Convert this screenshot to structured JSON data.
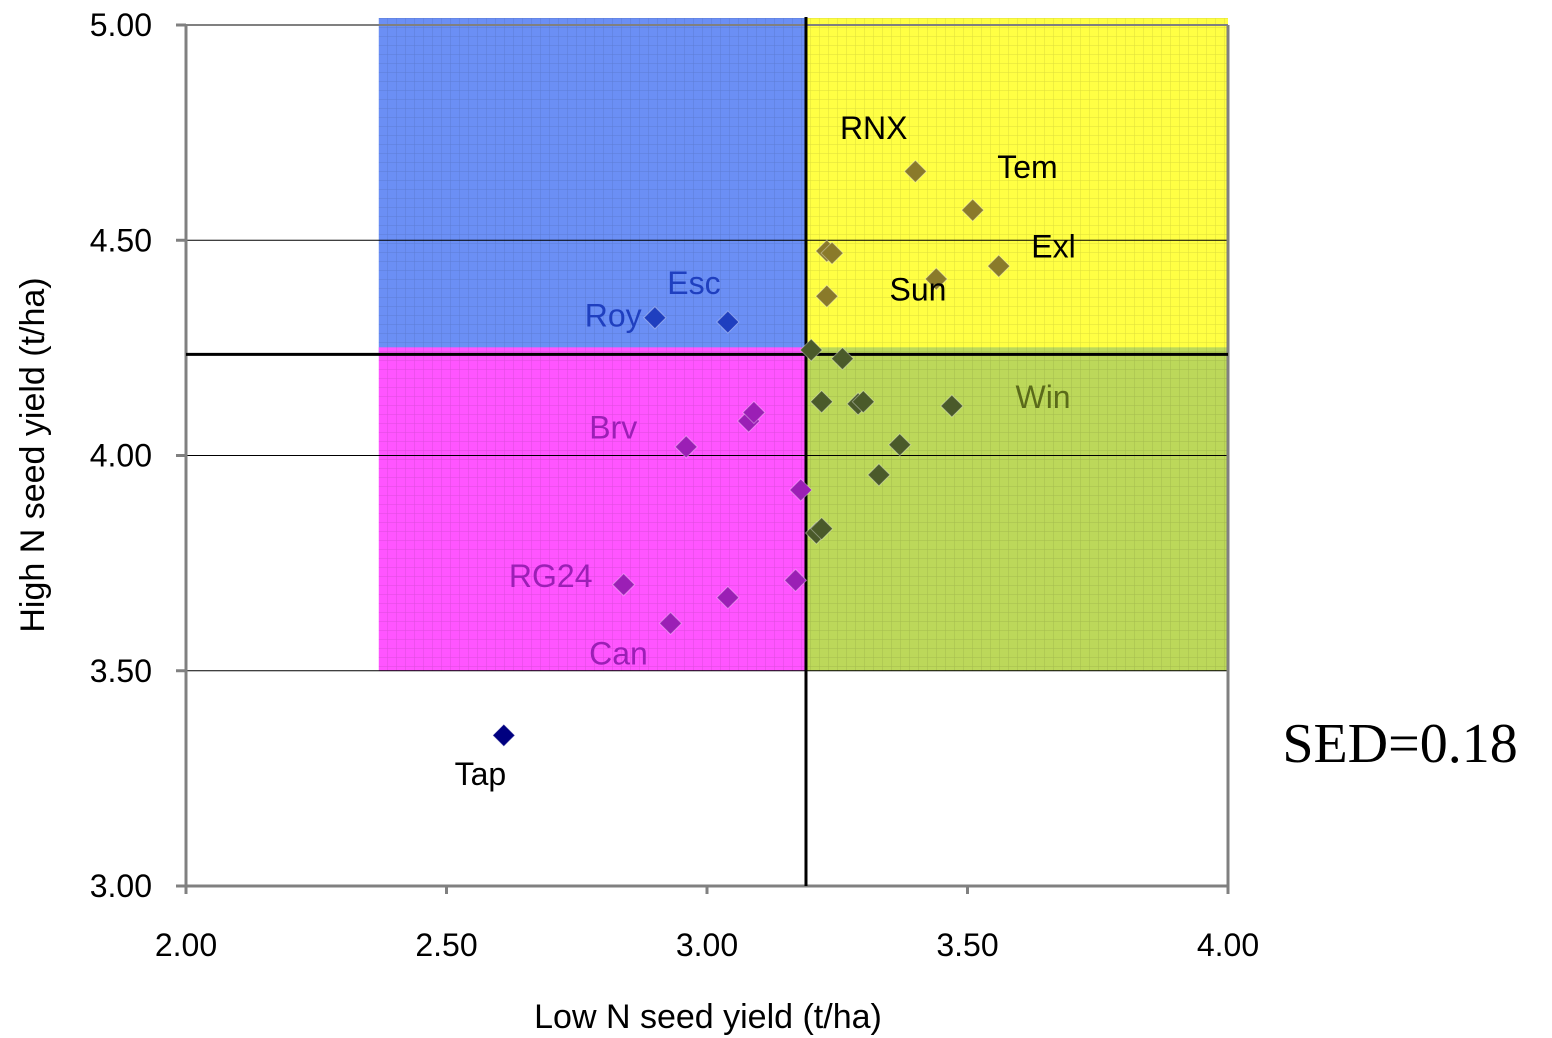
{
  "chart_data": {
    "type": "scatter",
    "xlabel": "Low N seed yield (t/ha)",
    "ylabel": "High N seed yield (t/ha)",
    "xlim": [
      2.0,
      4.0
    ],
    "ylim": [
      3.0,
      5.0
    ],
    "x_ticks": [
      "2.00",
      "2.50",
      "3.00",
      "3.50",
      "4.00"
    ],
    "y_ticks": [
      "3.00",
      "3.50",
      "4.00",
      "4.50",
      "5.00"
    ],
    "gridlines": "horizontal",
    "reference_lines": {
      "x": 3.19,
      "y": 4.235
    },
    "regions": [
      {
        "x": [
          2.37,
          3.19
        ],
        "y": [
          4.235,
          5.0
        ],
        "color": "#6b8ff5"
      },
      {
        "x": [
          3.19,
          4.0
        ],
        "y": [
          4.235,
          5.0
        ],
        "color": "#ffff44"
      },
      {
        "x": [
          2.37,
          3.19
        ],
        "y": [
          3.5,
          4.235
        ],
        "color": "#ff55ff"
      },
      {
        "x": [
          3.19,
          4.0
        ],
        "y": [
          3.5,
          4.235
        ],
        "color": "#bcd85a"
      }
    ],
    "series": [
      {
        "color": "#1f3fbf",
        "points": [
          [
            2.9,
            4.32
          ],
          [
            3.04,
            4.31
          ]
        ]
      },
      {
        "color": "#8a7a2a",
        "points": [
          [
            3.4,
            4.66
          ],
          [
            3.51,
            4.57
          ],
          [
            3.56,
            4.44
          ],
          [
            3.44,
            4.41
          ],
          [
            3.23,
            4.475
          ],
          [
            3.24,
            4.47
          ],
          [
            3.23,
            4.37
          ]
        ]
      },
      {
        "color": "#9b1fb5",
        "points": [
          [
            2.96,
            4.02
          ],
          [
            3.08,
            4.08
          ],
          [
            3.09,
            4.1
          ],
          [
            3.18,
            3.92
          ],
          [
            2.84,
            3.7
          ],
          [
            3.04,
            3.67
          ],
          [
            2.93,
            3.61
          ],
          [
            3.17,
            3.71
          ]
        ]
      },
      {
        "color": "#4a5a2a",
        "points": [
          [
            3.2,
            4.245
          ],
          [
            3.26,
            4.225
          ],
          [
            3.22,
            4.125
          ],
          [
            3.29,
            4.12
          ],
          [
            3.3,
            4.125
          ],
          [
            3.47,
            4.115
          ],
          [
            3.37,
            4.025
          ],
          [
            3.33,
            3.955
          ],
          [
            3.21,
            3.82
          ],
          [
            3.22,
            3.83
          ]
        ]
      },
      {
        "color": "#000080",
        "points": [
          [
            2.61,
            3.35
          ]
        ]
      }
    ],
    "point_labels": [
      {
        "text": "RNX",
        "x": 3.32,
        "y": 4.735,
        "color": "#000000"
      },
      {
        "text": "Tem",
        "x": 3.615,
        "y": 4.645,
        "color": "#000000"
      },
      {
        "text": "Exl",
        "x": 3.665,
        "y": 4.46,
        "color": "#000000"
      },
      {
        "text": "Sun",
        "x": 3.405,
        "y": 4.36,
        "color": "#000000"
      },
      {
        "text": "Esc",
        "x": 2.975,
        "y": 4.375,
        "color": "#1f3fbf"
      },
      {
        "text": "Roy",
        "x": 2.82,
        "y": 4.3,
        "color": "#1f3fbf"
      },
      {
        "text": "Win",
        "x": 3.645,
        "y": 4.11,
        "color": "#5a6a1a"
      },
      {
        "text": "Brv",
        "x": 2.82,
        "y": 4.04,
        "color": "#9b1fb5"
      },
      {
        "text": "RG24",
        "x": 2.7,
        "y": 3.695,
        "color": "#9b1fb5"
      },
      {
        "text": "Can",
        "x": 2.83,
        "y": 3.515,
        "color": "#9b1fb5"
      },
      {
        "text": "Tap",
        "x": 2.565,
        "y": 3.235,
        "color": "#000000"
      }
    ],
    "annotation": "SED=0.18"
  }
}
